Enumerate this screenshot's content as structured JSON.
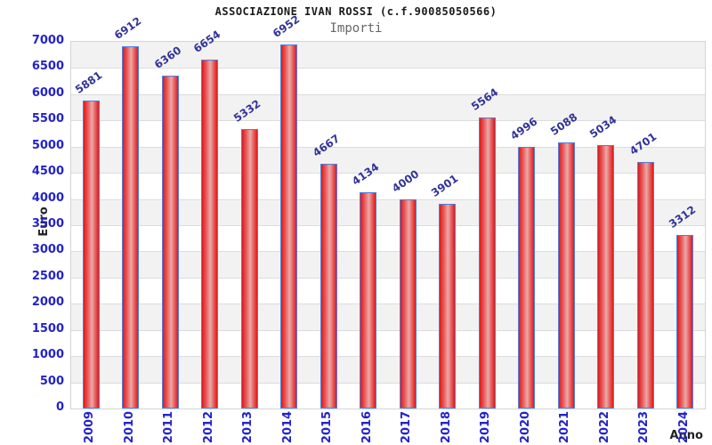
{
  "chart_data": {
    "type": "bar",
    "title": "ASSOCIAZIONE IVAN ROSSI (c.f.90085050566)",
    "subtitle": "Importi",
    "xlabel": "Anno",
    "ylabel": "Euro",
    "categories": [
      "2009",
      "2010",
      "2011",
      "2012",
      "2013",
      "2014",
      "2015",
      "2016",
      "2017",
      "2018",
      "2019",
      "2020",
      "2021",
      "2022",
      "2023",
      "2024"
    ],
    "values": [
      5881,
      6912,
      6360,
      6654,
      5332,
      6952,
      4667,
      4134,
      4000,
      3901,
      5564,
      4996,
      5088,
      5034,
      4701,
      3312
    ],
    "ylim": [
      0,
      7000
    ],
    "ytick_step": 500,
    "grid": true,
    "legend": false,
    "layout": {
      "band_pattern": "alternating horizontal 500-unit bands, gray at top",
      "value_labels": "rotated above each bar",
      "x_tick_rotation": -90
    },
    "colors": {
      "bar_red": "#dd1a1a",
      "bar_mid_red": "#ea5a5a",
      "bar_highlight": "#e9aaaa",
      "bar_border": "#4f7fe0",
      "tick_blue": "#2323cc",
      "value_navy": "#333399",
      "band_gray": "#f2f2f2",
      "grid_gray": "#dcdcdc",
      "title_color": "#1a1a1a",
      "subtitle_color": "#666666"
    }
  }
}
